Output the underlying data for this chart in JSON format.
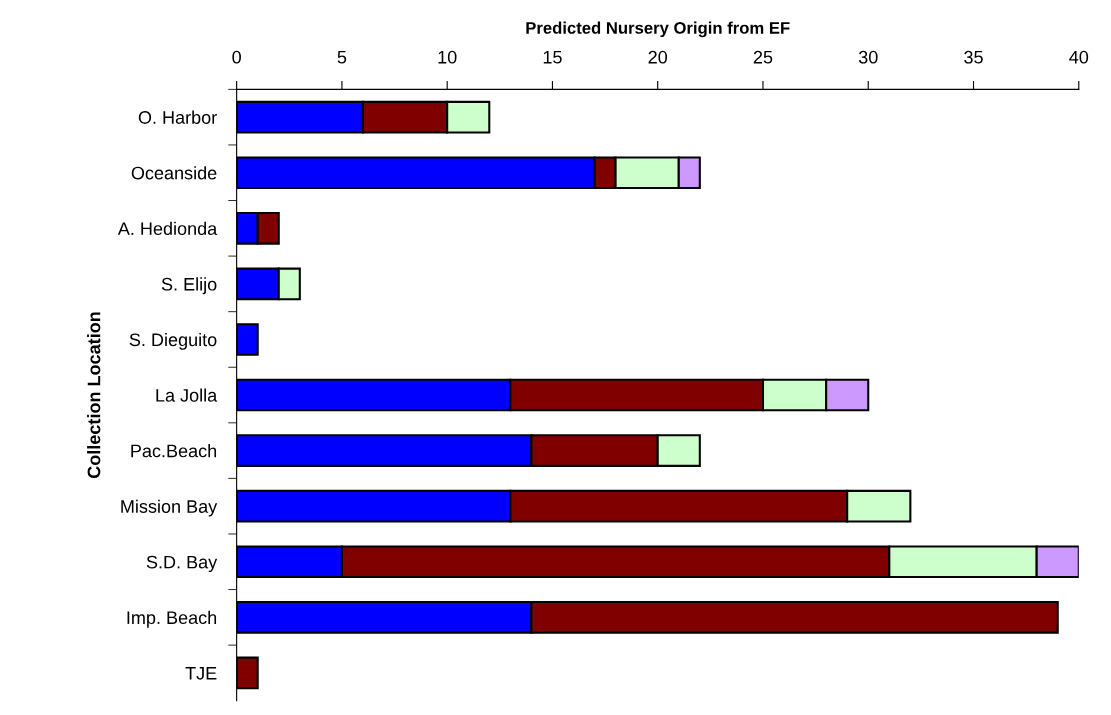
{
  "chart_data": {
    "type": "bar",
    "orientation": "horizontal",
    "stacked": true,
    "xlabel": "Predicted Nursery Origin from EF",
    "ylabel": "Collection Location",
    "categories": [
      "O. Harbor",
      "Oceanside",
      "A. Hedionda",
      "S. Elijo",
      "S. Dieguito",
      "La Jolla",
      "Pac.Beach",
      "Mission Bay",
      "S.D. Bay",
      "Imp. Beach",
      "TJE"
    ],
    "series": [
      {
        "color": "#0000ff",
        "values": [
          6,
          17,
          1,
          2,
          1,
          13,
          14,
          13,
          5,
          14,
          0
        ]
      },
      {
        "color": "#800000",
        "values": [
          4,
          1,
          1,
          0,
          0,
          12,
          6,
          16,
          26,
          25,
          1
        ]
      },
      {
        "color": "#ccffcc",
        "values": [
          2,
          3,
          0,
          1,
          0,
          3,
          2,
          3,
          7,
          0,
          0
        ]
      },
      {
        "color": "#cc99ff",
        "values": [
          0,
          1,
          0,
          0,
          0,
          2,
          0,
          0,
          2,
          0,
          0
        ]
      }
    ],
    "xlim": [
      0,
      40
    ],
    "xticks": [
      0,
      5,
      10,
      15,
      20,
      25,
      30,
      35,
      40
    ],
    "grid": false,
    "legend": false
  }
}
